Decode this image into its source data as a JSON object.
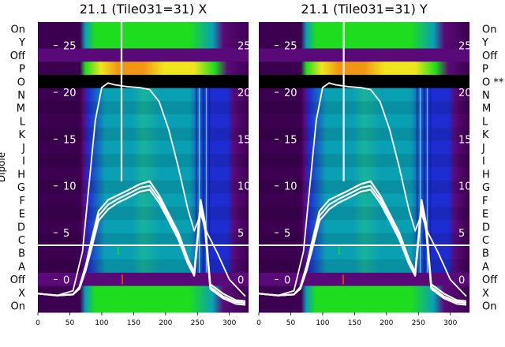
{
  "chart_data": [
    {
      "type": "heatmap",
      "title": "21.1 (Tile031=31) X",
      "ylabel": "Dipole",
      "x_ticks": [
        0,
        50,
        100,
        150,
        200,
        250,
        300
      ],
      "xlim": [
        0,
        330
      ],
      "overlay_ticks": [
        25,
        20,
        15,
        10,
        5,
        0
      ],
      "overlay_ylim": [
        -3.5,
        27.5
      ],
      "rows": [
        "On",
        "Y",
        "Off",
        "P",
        "O",
        "N",
        "M",
        "L",
        "K",
        "J",
        "I",
        "H",
        "G",
        "F",
        "E",
        "D",
        "C",
        "B",
        "A",
        "Off",
        "X",
        "On"
      ],
      "flagged_row": "O",
      "flag_mark": "",
      "divider_between": [
        "C",
        "B"
      ],
      "overlay_curves": [
        {
          "x": [
            0,
            30,
            55,
            70,
            80,
            90,
            100,
            110,
            120,
            140,
            160,
            175,
            190,
            205,
            220,
            235,
            245,
            255,
            265,
            280,
            300,
            325
          ],
          "y": [
            -1.5,
            -1.7,
            -1.2,
            3,
            10,
            17,
            20.5,
            21,
            20.8,
            20.6,
            20.5,
            20.3,
            19,
            16,
            12,
            7.5,
            5.2,
            7,
            5,
            3,
            0,
            -1.8
          ]
        },
        {
          "x": [
            0,
            30,
            55,
            65,
            75,
            85,
            95,
            110,
            125,
            140,
            160,
            175,
            190,
            205,
            220,
            235,
            245,
            255,
            262,
            270,
            290,
            310,
            325
          ],
          "y": [
            -1.5,
            -1.7,
            -1.6,
            -0.8,
            1.5,
            4.5,
            7.3,
            8.5,
            9,
            9.5,
            10.2,
            10.5,
            9,
            7,
            5,
            2.2,
            0.8,
            8.5,
            6,
            -0.5,
            -1.5,
            -2.2,
            -2.3
          ]
        },
        {
          "x": [
            0,
            30,
            55,
            65,
            75,
            85,
            95,
            110,
            125,
            140,
            160,
            175,
            190,
            205,
            220,
            235,
            245,
            255,
            262,
            270,
            290,
            310,
            325
          ],
          "y": [
            -1.5,
            -1.7,
            -1.6,
            -0.9,
            1.2,
            4,
            6.8,
            8,
            8.6,
            9.1,
            9.8,
            10,
            8.6,
            6.7,
            4.7,
            2,
            0.6,
            8,
            5.6,
            -0.8,
            -1.8,
            -2.4,
            -2.5
          ]
        },
        {
          "x": [
            0,
            30,
            55,
            65,
            75,
            85,
            95,
            110,
            125,
            140,
            160,
            175,
            190,
            205,
            220,
            235,
            245,
            255,
            262,
            270,
            290,
            310,
            325
          ],
          "y": [
            -1.5,
            -1.7,
            -1.6,
            -1,
            1,
            3.6,
            6.3,
            7.5,
            8.2,
            8.7,
            9.4,
            9.6,
            8.2,
            6.3,
            4.3,
            1.7,
            0.4,
            7.6,
            5.2,
            -1,
            -2,
            -2.6,
            -2.7
          ]
        }
      ],
      "spike": {
        "x": 131,
        "y_top": 27.5,
        "y_base": 10.5
      }
    },
    {
      "type": "heatmap",
      "title": "21.1 (Tile031=31) Y",
      "x_ticks": [
        0,
        50,
        100,
        150,
        200,
        250,
        300
      ],
      "xlim": [
        0,
        330
      ],
      "overlay_ticks": [
        25,
        20,
        15,
        10,
        5,
        0
      ],
      "overlay_ylim": [
        -3.5,
        27.5
      ],
      "rows": [
        "On",
        "Y",
        "Off",
        "P",
        "O",
        "N",
        "M",
        "L",
        "K",
        "J",
        "I",
        "H",
        "G",
        "F",
        "E",
        "D",
        "C",
        "B",
        "A",
        "Off",
        "X",
        "On"
      ],
      "flagged_row": "O",
      "flag_mark": "**",
      "divider_between": [
        "C",
        "B"
      ],
      "overlay_curves": [
        {
          "x": [
            0,
            30,
            55,
            70,
            80,
            90,
            100,
            110,
            120,
            140,
            160,
            175,
            190,
            205,
            220,
            235,
            245,
            255,
            265,
            280,
            300,
            325
          ],
          "y": [
            -1.5,
            -1.7,
            -1.2,
            3,
            10,
            17,
            20.5,
            21,
            20.8,
            20.6,
            20.5,
            20.3,
            19,
            16,
            12,
            7.5,
            5.2,
            7,
            5,
            3,
            0,
            -1.8
          ]
        },
        {
          "x": [
            0,
            30,
            55,
            65,
            75,
            85,
            95,
            110,
            125,
            140,
            160,
            175,
            190,
            205,
            220,
            235,
            245,
            255,
            262,
            270,
            290,
            310,
            325
          ],
          "y": [
            -1.5,
            -1.7,
            -1.6,
            -0.8,
            1.5,
            4.5,
            7.3,
            8.5,
            9,
            9.5,
            10.2,
            10.5,
            9,
            7,
            5,
            2.2,
            0.8,
            8.5,
            6,
            -0.5,
            -1.5,
            -2.2,
            -2.3
          ]
        },
        {
          "x": [
            0,
            30,
            55,
            65,
            75,
            85,
            95,
            110,
            125,
            140,
            160,
            175,
            190,
            205,
            220,
            235,
            245,
            255,
            262,
            270,
            290,
            310,
            325
          ],
          "y": [
            -1.5,
            -1.7,
            -1.6,
            -0.9,
            1.2,
            4,
            6.8,
            8,
            8.6,
            9.1,
            9.8,
            10,
            8.6,
            6.7,
            4.7,
            2,
            0.6,
            8,
            5.6,
            -0.8,
            -1.8,
            -2.4,
            -2.5
          ]
        },
        {
          "x": [
            0,
            30,
            55,
            65,
            75,
            85,
            95,
            110,
            125,
            140,
            160,
            175,
            190,
            205,
            220,
            235,
            245,
            255,
            262,
            270,
            290,
            310,
            325
          ],
          "y": [
            -1.5,
            -1.7,
            -1.6,
            -1,
            1,
            3.6,
            6.3,
            7.5,
            8.2,
            8.7,
            9.4,
            9.6,
            8.2,
            6.3,
            4.3,
            1.7,
            0.4,
            7.6,
            5.2,
            -1,
            -2,
            -2.6,
            -2.7
          ]
        }
      ],
      "spike": {
        "x": 133,
        "y_top": 27.5,
        "y_base": 10.5
      }
    }
  ],
  "colors": {
    "outer": "#3c0050",
    "purple": "#5a0a78",
    "blue": "#1e2dd2",
    "teal": "#0aa0b4",
    "green": "#1edc1e",
    "yellow": "#f0e61e",
    "orange": "#f09614",
    "flag": "#000000",
    "overlay": "#ffffff"
  }
}
